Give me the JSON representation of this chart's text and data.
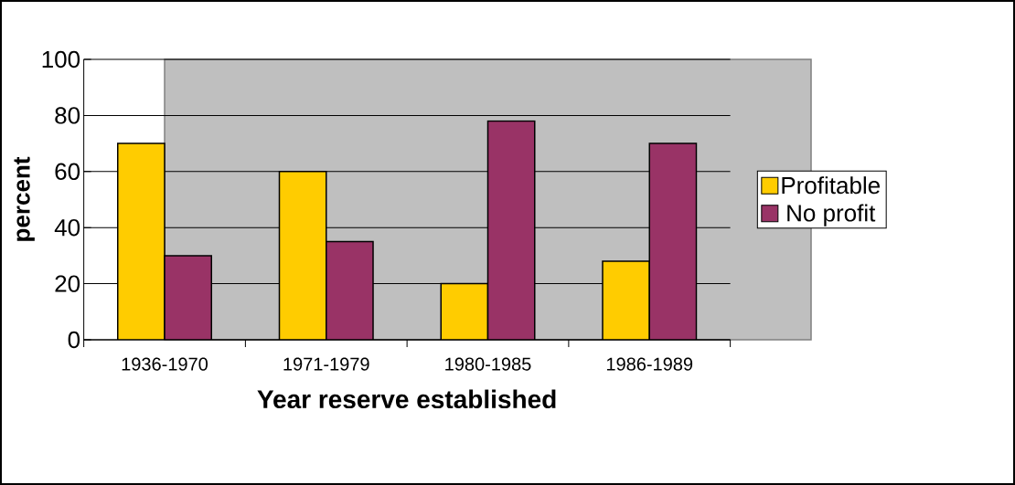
{
  "chart_data": {
    "type": "bar",
    "xlabel": "Year reserve established",
    "ylabel": "percent",
    "categories": [
      "1936-1970",
      "1971-1979",
      "1980-1985",
      "1986-1989"
    ],
    "series": [
      {
        "name": "Profitable",
        "color": "#ffcc00",
        "values": [
          70,
          60,
          20,
          28
        ]
      },
      {
        "name": "No profit",
        "color": "#993366",
        "values": [
          30,
          35,
          78,
          70
        ]
      }
    ],
    "ylim": [
      0,
      100
    ],
    "yticks": [
      0,
      20,
      40,
      60,
      80,
      100
    ],
    "grid": "y",
    "legend": "right"
  }
}
